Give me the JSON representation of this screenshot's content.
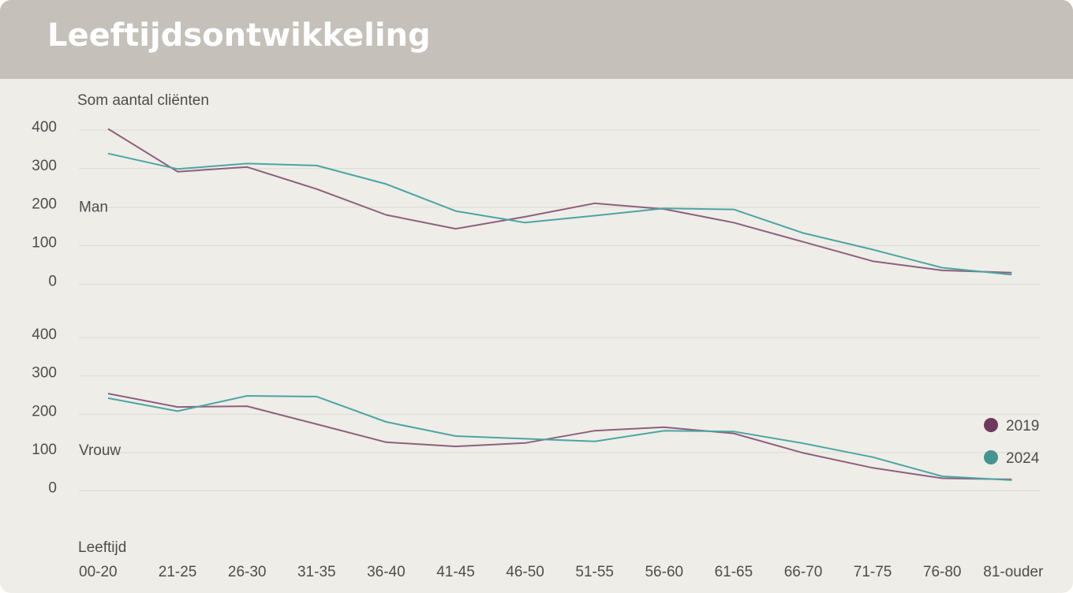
{
  "header": {
    "title": "Leeftijdsontwikkeling"
  },
  "chart_data": {
    "type": "line",
    "ylabel": "Som aantal cliënten",
    "xlabel": "Leeftijd",
    "categories": [
      "00-20",
      "21-25",
      "26-30",
      "31-35",
      "36-40",
      "41-45",
      "46-50",
      "51-55",
      "56-60",
      "61-65",
      "66-70",
      "71-75",
      "76-80",
      "81-ouder"
    ],
    "yticks": [
      0,
      100,
      200,
      300,
      400
    ],
    "ylim": [
      0,
      400
    ],
    "grid": true,
    "legend": {
      "placement": "right",
      "items": [
        {
          "label": "2019",
          "color": "#6e3a5c"
        },
        {
          "label": "2024",
          "color": "#46948f"
        }
      ]
    },
    "panels": [
      {
        "name": "Man",
        "series": [
          {
            "name": "2019",
            "color": "#8f5f7e",
            "values": [
              403,
              292,
              304,
              247,
              180,
              144,
              175,
              210,
              195,
              160,
              110,
              60,
              36,
              30
            ]
          },
          {
            "name": "2024",
            "color": "#4ca5a3",
            "values": [
              339,
              299,
              313,
              308,
              260,
              190,
              160,
              178,
              197,
              194,
              133,
              90,
              43,
              25
            ]
          }
        ]
      },
      {
        "name": "Vrouw",
        "series": [
          {
            "name": "2019",
            "color": "#8f5f7e",
            "values": [
              254,
              219,
              221,
              174,
              127,
              116,
              125,
              157,
              166,
              150,
              99,
              60,
              33,
              30
            ]
          },
          {
            "name": "2024",
            "color": "#4ca5a3",
            "values": [
              242,
              208,
              248,
              246,
              180,
              143,
              136,
              129,
              157,
              155,
              124,
              88,
              38,
              28
            ]
          }
        ]
      }
    ]
  }
}
